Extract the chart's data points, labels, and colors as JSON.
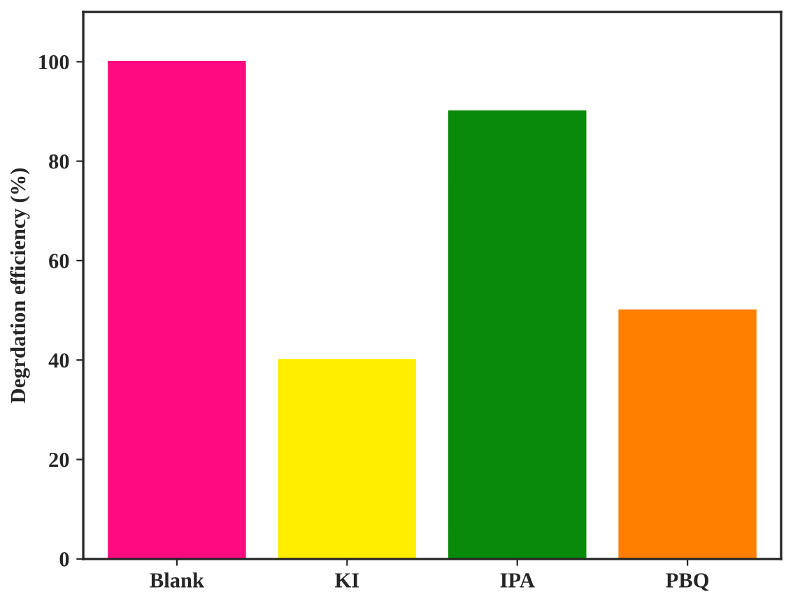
{
  "chart_data": {
    "type": "bar",
    "ylabel": "Degrdation efficiency (%)",
    "categories": [
      "Blank",
      "KI",
      "IPA",
      "PBQ"
    ],
    "values": [
      100,
      40,
      90,
      50
    ],
    "colors": [
      "#ff0a80",
      "#ffee00",
      "#0a8a0a",
      "#ff8000"
    ],
    "ylim": [
      0,
      110
    ],
    "yticks": [
      0,
      20,
      40,
      60,
      80,
      100
    ],
    "grid": false,
    "legend": false
  }
}
